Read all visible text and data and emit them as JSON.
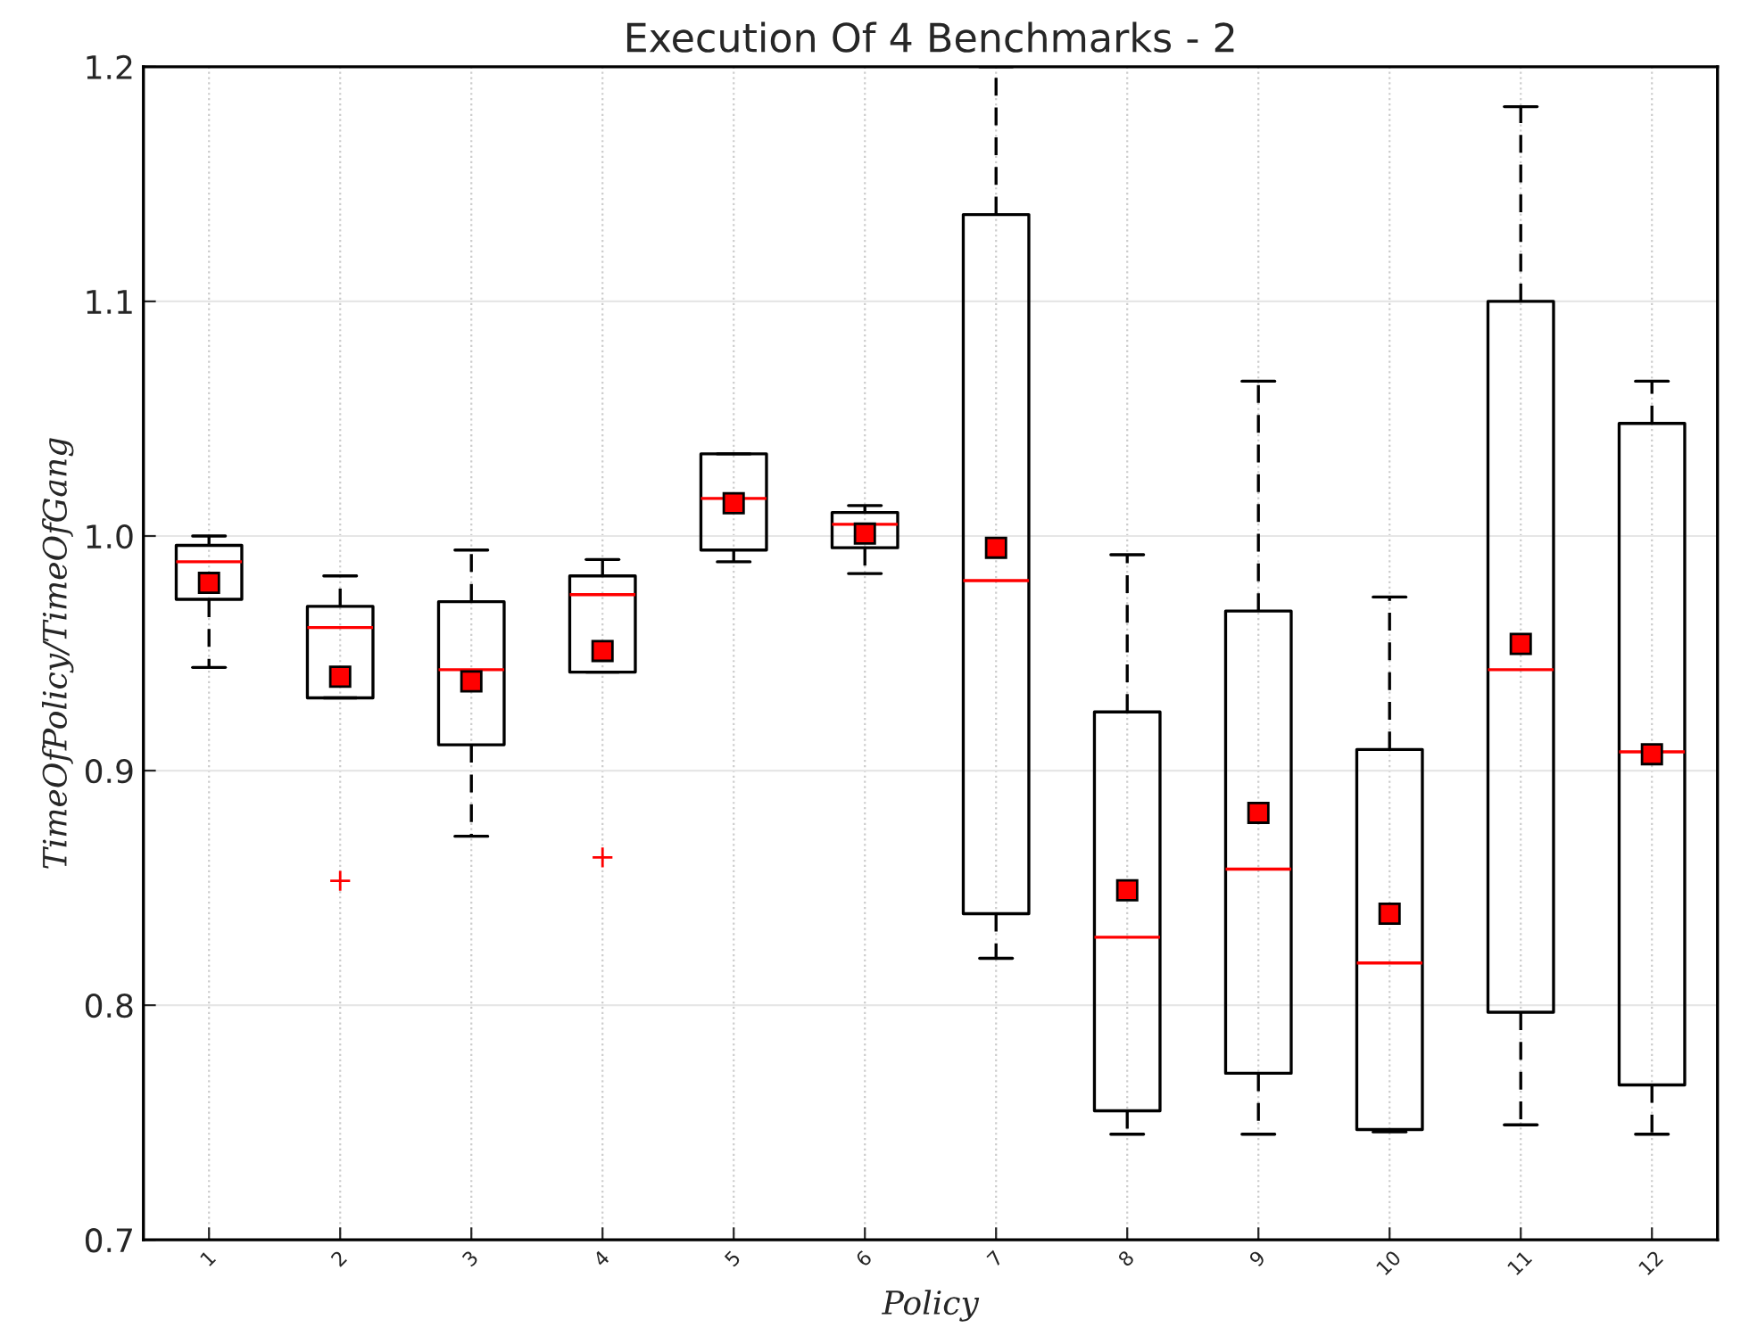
{
  "chart_data": {
    "type": "box",
    "title": "Execution Of 4 Benchmarks - 2",
    "xlabel": "Policy",
    "ylabel": "TimeOfPolicy/TimeOfGang",
    "categories": [
      "1",
      "2",
      "3",
      "4",
      "5",
      "6",
      "7",
      "8",
      "9",
      "10",
      "11",
      "12"
    ],
    "boxes": [
      {
        "low": 0.944,
        "q1": 0.973,
        "median": 0.989,
        "q3": 0.996,
        "high": 1.0,
        "mean": 0.98
      },
      {
        "low": 0.931,
        "q1": 0.931,
        "median": 0.961,
        "q3": 0.97,
        "high": 0.983,
        "mean": 0.94,
        "outliers": [
          0.853
        ]
      },
      {
        "low": 0.872,
        "q1": 0.911,
        "median": 0.943,
        "q3": 0.972,
        "high": 0.994,
        "mean": 0.938
      },
      {
        "low": 0.942,
        "q1": 0.942,
        "median": 0.975,
        "q3": 0.983,
        "high": 0.99,
        "mean": 0.951,
        "outliers": [
          0.863
        ]
      },
      {
        "low": 0.989,
        "q1": 0.994,
        "median": 1.016,
        "q3": 1.035,
        "high": 1.035,
        "mean": 1.014
      },
      {
        "low": 0.984,
        "q1": 0.995,
        "median": 1.005,
        "q3": 1.01,
        "high": 1.013,
        "mean": 1.001
      },
      {
        "low": 0.82,
        "q1": 0.839,
        "median": 0.981,
        "q3": 1.137,
        "high": 1.2,
        "mean": 0.995
      },
      {
        "low": 0.745,
        "q1": 0.755,
        "median": 0.829,
        "q3": 0.925,
        "high": 0.992,
        "mean": 0.849
      },
      {
        "low": 0.745,
        "q1": 0.771,
        "median": 0.858,
        "q3": 0.968,
        "high": 1.066,
        "mean": 0.882
      },
      {
        "low": 0.746,
        "q1": 0.747,
        "median": 0.818,
        "q3": 0.909,
        "high": 0.974,
        "mean": 0.839
      },
      {
        "low": 0.749,
        "q1": 0.797,
        "median": 0.943,
        "q3": 1.1,
        "high": 1.183,
        "mean": 0.954
      },
      {
        "low": 0.745,
        "q1": 0.766,
        "median": 0.908,
        "q3": 1.048,
        "high": 1.066,
        "mean": 0.907
      }
    ],
    "ylim": [
      0.7,
      1.2
    ],
    "yticks": [
      0.7,
      0.8,
      0.9,
      {
        "value": 1.0,
        "label": "1.0"
      },
      1.1,
      1.2
    ],
    "grid": true
  }
}
